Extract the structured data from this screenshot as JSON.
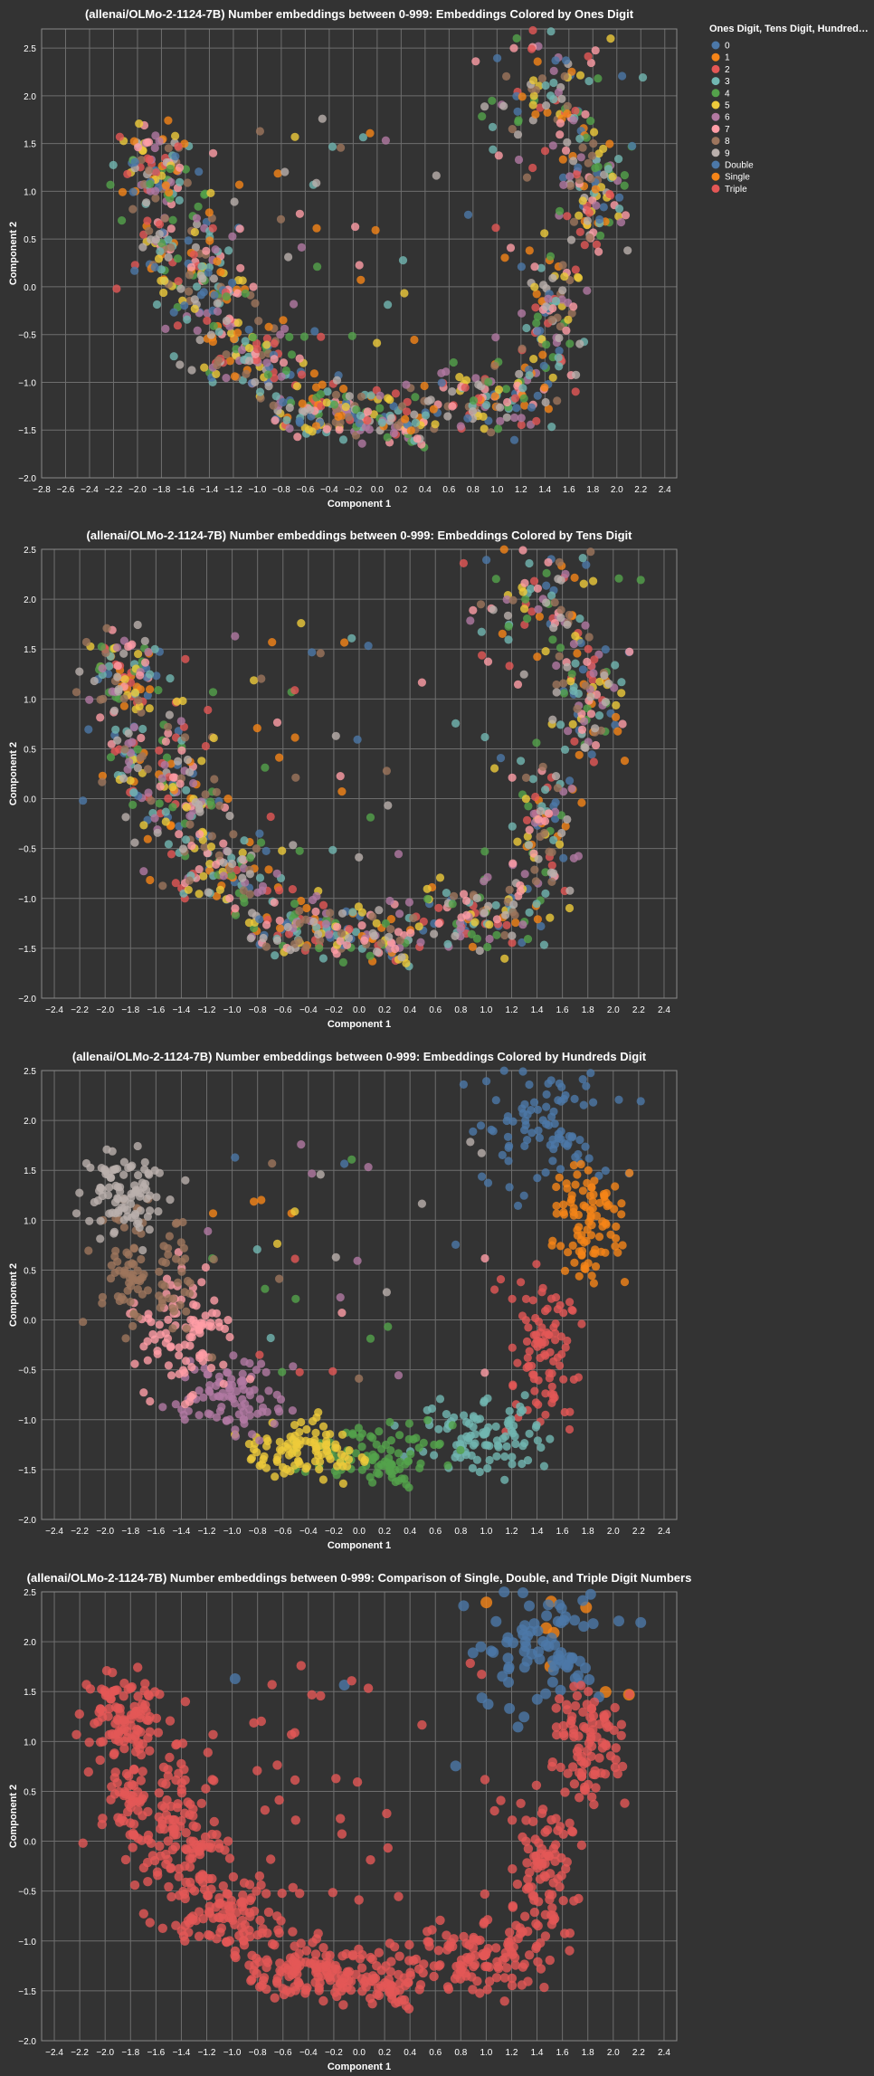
{
  "theme": {
    "background": "#333333",
    "grid": "#6e6e6e",
    "text": "#ffffff"
  },
  "legend": {
    "title": "Ones Digit, Tens Digit, Hundred…",
    "placement": "top-right",
    "items": [
      {
        "label": "0",
        "color": "#4c78a8"
      },
      {
        "label": "1",
        "color": "#f58518"
      },
      {
        "label": "2",
        "color": "#e45756"
      },
      {
        "label": "3",
        "color": "#72b7b2"
      },
      {
        "label": "4",
        "color": "#54a24b"
      },
      {
        "label": "5",
        "color": "#eeca3b"
      },
      {
        "label": "6",
        "color": "#b279a2"
      },
      {
        "label": "7",
        "color": "#ff9da6"
      },
      {
        "label": "8",
        "color": "#9d755d"
      },
      {
        "label": "9",
        "color": "#bab0ac"
      },
      {
        "label": "Double",
        "color": "#4c78a8"
      },
      {
        "label": "Single",
        "color": "#f58518"
      },
      {
        "label": "Triple",
        "color": "#e45756"
      }
    ]
  },
  "chart_data": [
    {
      "type": "scatter",
      "title": "(allenai/OLMo-2-1124-7B) Number embeddings between 0-999: Embeddings Colored by Ones Digit",
      "xlabel": "Component 1",
      "ylabel": "Component 2",
      "xlim": [
        -2.8,
        2.5
      ],
      "ylim": [
        -2.0,
        2.7
      ],
      "xticks": [
        "−2.8",
        "−2.6",
        "−2.4",
        "−2.2",
        "−2.0",
        "−1.8",
        "−1.6",
        "−1.4",
        "−1.2",
        "−1.0",
        "−0.8",
        "−0.6",
        "−0.4",
        "−0.2",
        "0.0",
        "0.2",
        "0.4",
        "0.6",
        "0.8",
        "1.0",
        "1.2",
        "1.4",
        "1.6",
        "1.8",
        "2.0",
        "2.2",
        "2.4"
      ],
      "yticks": [
        "2.5",
        "2.0",
        "1.5",
        "1.0",
        "0.5",
        "0.0",
        "−0.5",
        "−1.0",
        "−1.5",
        "−2.0"
      ],
      "grid": true,
      "color_by": "ones digit",
      "point_source": "shared number embeddings (0-999)"
    },
    {
      "type": "scatter",
      "title": "(allenai/OLMo-2-1124-7B) Number embeddings between 0-999: Embeddings Colored by Tens Digit",
      "xlabel": "Component 1",
      "ylabel": "Component 2",
      "xlim": [
        -2.5,
        2.5
      ],
      "ylim": [
        -2.0,
        2.5
      ],
      "xticks": [
        "−2.4",
        "−2.2",
        "−2.0",
        "−1.8",
        "−1.6",
        "−1.4",
        "−1.2",
        "−1.0",
        "−0.8",
        "−0.6",
        "−0.4",
        "−0.2",
        "0.0",
        "0.2",
        "0.4",
        "0.6",
        "0.8",
        "1.0",
        "1.2",
        "1.4",
        "1.6",
        "1.8",
        "2.0",
        "2.2",
        "2.4"
      ],
      "yticks": [
        "2.5",
        "2.0",
        "1.5",
        "1.0",
        "0.5",
        "0.0",
        "−0.5",
        "−1.0",
        "−1.5",
        "−2.0"
      ],
      "grid": true,
      "color_by": "tens digit"
    },
    {
      "type": "scatter",
      "title": "(allenai/OLMo-2-1124-7B) Number embeddings between 0-999: Embeddings Colored by Hundreds Digit",
      "xlabel": "Component 1",
      "ylabel": "Component 2",
      "xlim": [
        -2.5,
        2.5
      ],
      "ylim": [
        -2.0,
        2.5
      ],
      "xticks": [
        "−2.4",
        "−2.2",
        "−2.0",
        "−1.8",
        "−1.6",
        "−1.4",
        "−1.2",
        "−1.0",
        "−0.8",
        "−0.6",
        "−0.4",
        "−0.2",
        "0.0",
        "0.2",
        "0.4",
        "0.6",
        "0.8",
        "1.0",
        "1.2",
        "1.4",
        "1.6",
        "1.8",
        "2.0",
        "2.2",
        "2.4"
      ],
      "yticks": [
        "2.5",
        "2.0",
        "1.5",
        "1.0",
        "0.5",
        "0.0",
        "−0.5",
        "−1.0",
        "−1.5",
        "−2.0"
      ],
      "grid": true,
      "color_by": "hundreds digit"
    },
    {
      "type": "scatter",
      "title": "(allenai/OLMo-2-1124-7B) Number embeddings between 0-999: Comparison of Single, Double, and Triple Digit Numbers",
      "xlabel": "Component 1",
      "ylabel": "Component 2",
      "xlim": [
        -2.5,
        2.5
      ],
      "ylim": [
        -2.0,
        2.5
      ],
      "xticks": [
        "−2.4",
        "−2.2",
        "−2.0",
        "−1.8",
        "−1.6",
        "−1.4",
        "−1.2",
        "−1.0",
        "−0.8",
        "−0.6",
        "−0.4",
        "−0.2",
        "0.0",
        "0.2",
        "0.4",
        "0.6",
        "0.8",
        "1.0",
        "1.2",
        "1.4",
        "1.6",
        "1.8",
        "2.0",
        "2.2",
        "2.4"
      ],
      "yticks": [
        "2.5",
        "2.0",
        "1.5",
        "1.0",
        "0.5",
        "0.0",
        "−0.5",
        "−1.0",
        "−1.5",
        "−2.0"
      ],
      "grid": true,
      "color_by": "digit count (Single / Double / Triple)"
    }
  ]
}
